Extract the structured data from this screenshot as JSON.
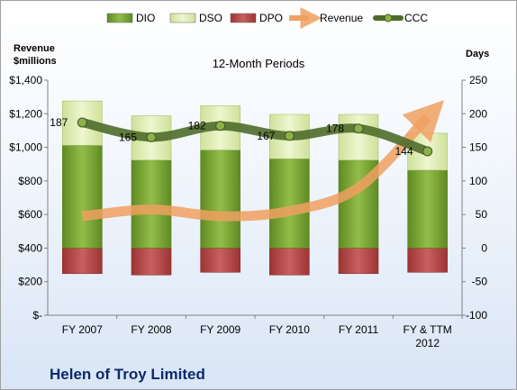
{
  "chart_data": {
    "type": "bar",
    "subtitle": "12-Month Periods",
    "company": "Helen of Troy Limited",
    "left_axis": {
      "label_line1": "Revenue",
      "label_line2": "$millions",
      "range": [
        0,
        1400
      ],
      "ticks": [
        0,
        200,
        400,
        600,
        800,
        1000,
        1200,
        1400
      ],
      "tick_labels": [
        "$-",
        "$200",
        "$400",
        "$600",
        "$800",
        "$1,000",
        "$1,200",
        "$1,400"
      ]
    },
    "right_axis": {
      "label": "Days",
      "range": [
        -100,
        250
      ],
      "ticks": [
        -100,
        -50,
        0,
        50,
        100,
        150,
        200,
        250
      ],
      "tick_labels": [
        "-100",
        "-50",
        "0",
        "50",
        "100",
        "150",
        "200",
        "250"
      ]
    },
    "categories": [
      {
        "line1": "FY 2007",
        "line2": ""
      },
      {
        "line1": "FY 2008",
        "line2": ""
      },
      {
        "line1": "FY 2009",
        "line2": ""
      },
      {
        "line1": "FY 2010",
        "line2": ""
      },
      {
        "line1": "FY 2011",
        "line2": ""
      },
      {
        "line1": "FY & TTM",
        "line2": "2012"
      }
    ],
    "series": [
      {
        "name": "DIO",
        "axis": "right",
        "kind": "stacked-bar",
        "color": "#7aa033",
        "values": [
          153,
          131,
          146,
          133,
          131,
          116
        ]
      },
      {
        "name": "DSO",
        "axis": "right",
        "kind": "stacked-bar",
        "color": "#d8e8a8",
        "values": [
          66,
          66,
          66,
          66,
          68,
          55
        ]
      },
      {
        "name": "DPO",
        "axis": "right",
        "kind": "stacked-bar",
        "color": "#b24848",
        "values": [
          -38,
          -40,
          -36,
          -40,
          -38,
          -36
        ]
      },
      {
        "name": "Revenue",
        "axis": "left",
        "kind": "arrow-line",
        "color": "#f0a060",
        "values": [
          590,
          630,
          590,
          620,
          760,
          1180
        ]
      },
      {
        "name": "CCC",
        "axis": "right",
        "kind": "line",
        "color": "#4f6b2a",
        "values": [
          187,
          165,
          182,
          167,
          178,
          144
        ]
      }
    ],
    "grid": false,
    "legend": "top"
  }
}
